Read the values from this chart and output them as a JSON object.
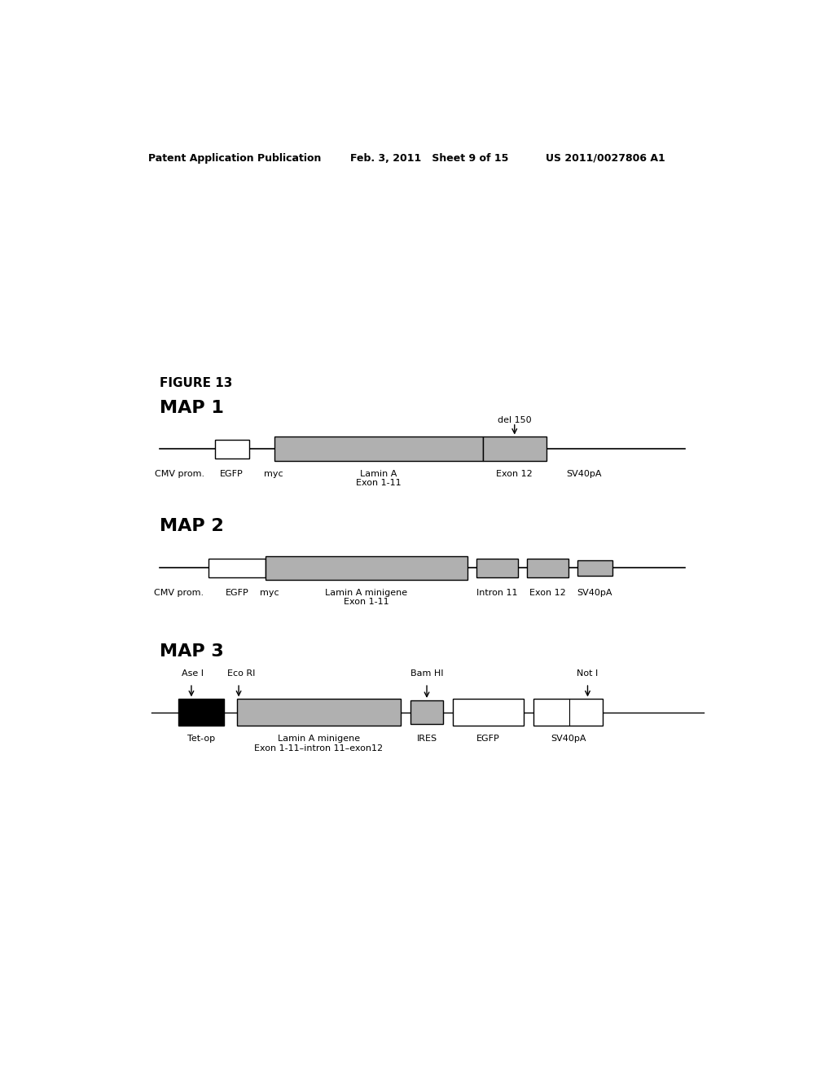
{
  "bg_color": "#ffffff",
  "header_left": "Patent Application Publication",
  "header_mid": "Feb. 3, 2011   Sheet 9 of 15",
  "header_right": "US 2011/0027806 A1",
  "figure_title": "FIGURE 13",
  "map1_title": "MAP 1",
  "map2_title": "MAP 2",
  "map3_title": "MAP 3",
  "gray_color": "#b0b0b0",
  "dark_gray_color": "#909090",
  "black_color": "#000000",
  "white_color": "#ffffff"
}
